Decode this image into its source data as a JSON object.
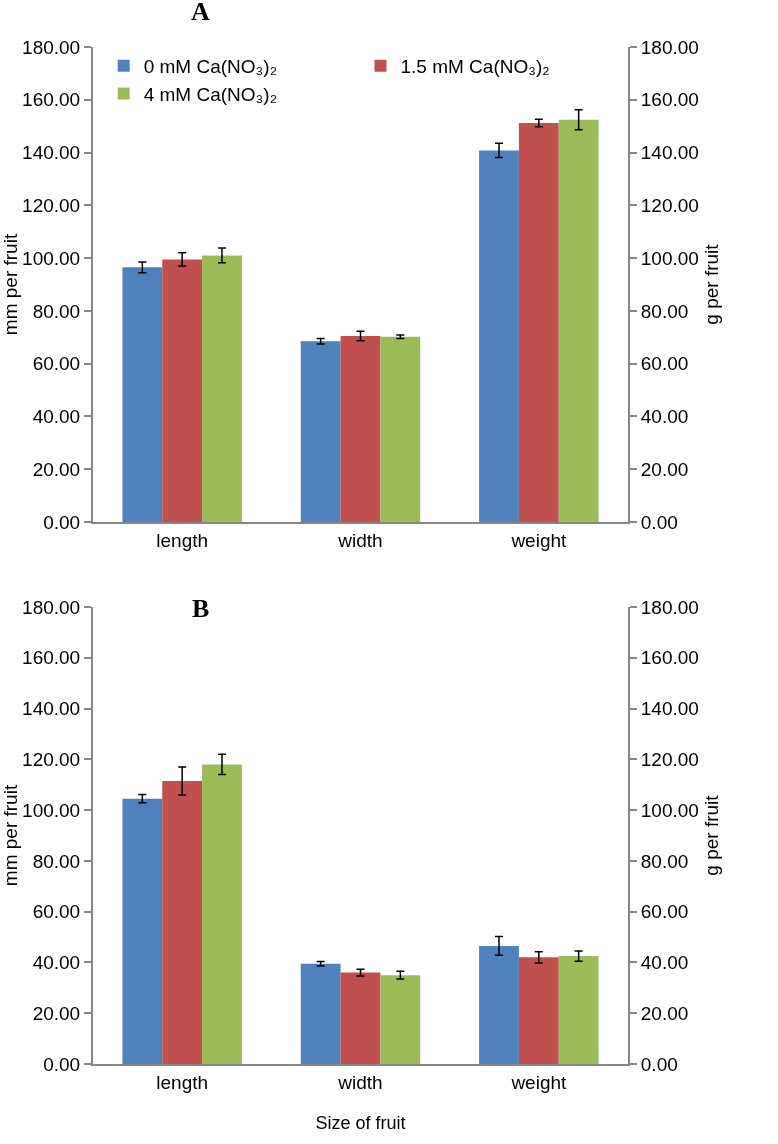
{
  "chart_data": [
    {
      "type": "bar",
      "title": "A",
      "ylabel": "mm per fruit",
      "y2label": "g per fruit",
      "categories": [
        "length",
        "width",
        "weight"
      ],
      "series": [
        {
          "name": "0 mM Ca(NO₃)₂",
          "color": "#4f81bd",
          "values": [
            96.5,
            68.5,
            140.8
          ],
          "errors": [
            2,
            1,
            2.7
          ]
        },
        {
          "name": "1.5 mM Ca(NO₃)₂",
          "color": "#c0504d",
          "values": [
            99.5,
            70.5,
            151.2
          ],
          "errors": [
            2.5,
            1.8,
            1.4
          ]
        },
        {
          "name": "4 mM Ca(NO₃)₂",
          "color": "#9bbb59",
          "values": [
            101,
            70.2,
            152.4
          ],
          "errors": [
            2.8,
            0.7,
            3.8
          ]
        }
      ],
      "ylim": [
        0,
        180
      ],
      "yticks": [
        {
          "value": 0,
          "label": "0.00"
        },
        {
          "value": 20,
          "label": "20.00"
        },
        {
          "value": 40,
          "label": "40.00"
        },
        {
          "value": 60,
          "label": "60.00"
        },
        {
          "value": 80,
          "label": "80.00"
        },
        {
          "value": 100,
          "label": "100.00"
        },
        {
          "value": 120,
          "label": "120.00"
        },
        {
          "value": 140,
          "label": "140.00"
        },
        {
          "value": 160,
          "label": "160.00"
        },
        {
          "value": 180,
          "label": "180.00"
        }
      ],
      "y2lim": [
        0,
        180
      ],
      "y2ticks": [
        {
          "value": 0,
          "label": "0.00"
        },
        {
          "value": 20,
          "label": "20.00"
        },
        {
          "value": 40,
          "label": "40.00"
        },
        {
          "value": 60,
          "label": "60.00"
        },
        {
          "value": 80,
          "label": "80.00"
        },
        {
          "value": 100,
          "label": "100.00"
        },
        {
          "value": 120,
          "label": "120.00"
        },
        {
          "value": 140,
          "label": "140.00"
        },
        {
          "value": 160,
          "label": "160.00"
        },
        {
          "value": 180,
          "label": "180.00"
        }
      ],
      "grid": false,
      "legend": "top"
    },
    {
      "type": "bar",
      "title": "B",
      "xlabel": "Size of fruit",
      "ylabel": "mm per fruit",
      "y2label": "g per fruit",
      "categories": [
        "length",
        "width",
        "weight"
      ],
      "series": [
        {
          "color": "#4f81bd",
          "values": [
            104.5,
            39.5,
            46.5
          ],
          "errors": [
            1.6,
            0.9,
            3.7
          ]
        },
        {
          "color": "#c0504d",
          "values": [
            111.5,
            36,
            42
          ],
          "errors": [
            5.5,
            1.3,
            2.2
          ]
        },
        {
          "color": "#9bbb59",
          "values": [
            118,
            35,
            42.5
          ],
          "errors": [
            4,
            1.5,
            2
          ]
        }
      ],
      "ylim": [
        0,
        180
      ],
      "yticks": [
        {
          "value": 0,
          "label": "0.00"
        },
        {
          "value": 20,
          "label": "20.00"
        },
        {
          "value": 40,
          "label": "40.00"
        },
        {
          "value": 60,
          "label": "60.00"
        },
        {
          "value": 80,
          "label": "80.00"
        },
        {
          "value": 100,
          "label": "100.00"
        },
        {
          "value": 120,
          "label": "120.00"
        },
        {
          "value": 140,
          "label": "140.00"
        },
        {
          "value": 160,
          "label": "160.00"
        },
        {
          "value": 180,
          "label": "180.00"
        }
      ],
      "y2lim": [
        0,
        180
      ],
      "y2ticks": [
        {
          "value": 0,
          "label": "0.00"
        },
        {
          "value": 20,
          "label": "20.00"
        },
        {
          "value": 40,
          "label": "40.00"
        },
        {
          "value": 60,
          "label": "60.00"
        },
        {
          "value": 80,
          "label": "80.00"
        },
        {
          "value": 100,
          "label": "100.00"
        },
        {
          "value": 120,
          "label": "120.00"
        },
        {
          "value": 140,
          "label": "140.00"
        },
        {
          "value": 160,
          "label": "160.00"
        },
        {
          "value": 180,
          "label": "180.00"
        }
      ],
      "grid": false,
      "legend": false
    }
  ]
}
